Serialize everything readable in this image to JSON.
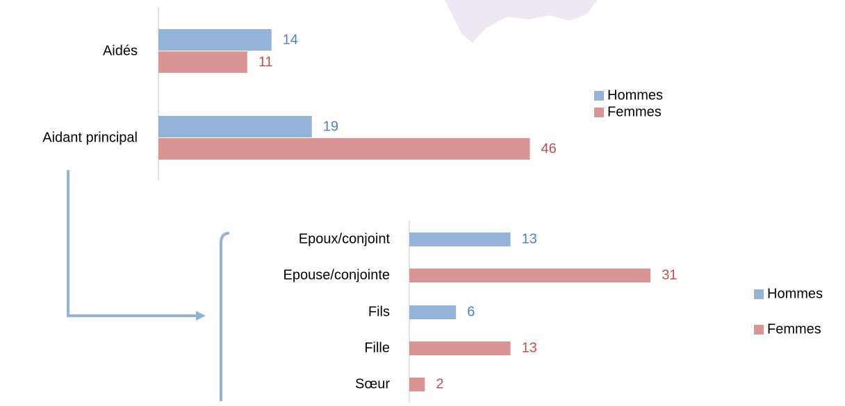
{
  "chart_data": [
    {
      "type": "bar",
      "orientation": "horizontal",
      "categories": [
        "Aidés",
        "Aidant principal"
      ],
      "series": [
        {
          "name": "Hommes",
          "color": "#95b3d7",
          "label_color": "#4f81bd",
          "values": [
            14,
            19
          ]
        },
        {
          "name": "Femmes",
          "color": "#d99594",
          "label_color": "#c0504d",
          "values": [
            11,
            46
          ]
        }
      ],
      "legend": "right"
    },
    {
      "type": "bar",
      "orientation": "horizontal",
      "categories": [
        "Epoux/conjoint",
        "Epouse/conjointe",
        "Fils",
        "Fille",
        "Sœur"
      ],
      "series": [
        {
          "name": "Hommes",
          "color": "#95b3d7",
          "label_color": "#4f81bd",
          "values": [
            13,
            null,
            6,
            null,
            null
          ]
        },
        {
          "name": "Femmes",
          "color": "#d99594",
          "label_color": "#c0504d",
          "values": [
            null,
            31,
            null,
            13,
            2
          ]
        }
      ],
      "legend": "right"
    }
  ]
}
